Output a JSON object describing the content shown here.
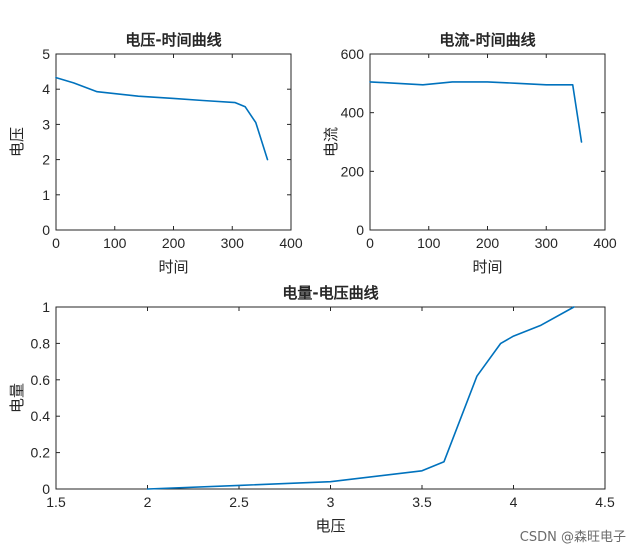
{
  "series_color": "#0072bd",
  "watermark": "CSDN @森旺电子",
  "chart_data": [
    {
      "type": "line",
      "title": "电压-时间曲线",
      "xlabel": "时间",
      "ylabel": "电压",
      "xlim": [
        0,
        400
      ],
      "ylim": [
        0,
        5
      ],
      "xticks": [
        0,
        100,
        200,
        300,
        400
      ],
      "yticks": [
        0,
        1,
        2,
        3,
        4,
        5
      ],
      "x": [
        0,
        30,
        70,
        140,
        200,
        250,
        305,
        322,
        340,
        360
      ],
      "y": [
        4.33,
        4.18,
        3.93,
        3.8,
        3.74,
        3.68,
        3.62,
        3.5,
        3.05,
        2.0
      ],
      "grid": false
    },
    {
      "type": "line",
      "title": "电流-时间曲线",
      "xlabel": "时间",
      "ylabel": "电流",
      "xlim": [
        0,
        400
      ],
      "ylim": [
        0,
        600
      ],
      "xticks": [
        0,
        100,
        200,
        300,
        400
      ],
      "yticks": [
        0,
        200,
        400,
        600
      ],
      "x": [
        0,
        45,
        90,
        140,
        200,
        250,
        300,
        345,
        360
      ],
      "y": [
        505,
        500,
        495,
        505,
        505,
        500,
        495,
        495,
        300
      ],
      "grid": false
    },
    {
      "type": "line",
      "title": "电量-电压曲线",
      "xlabel": "电压",
      "ylabel": "电量",
      "xlim": [
        1.5,
        4.5
      ],
      "ylim": [
        0,
        1
      ],
      "xticks": [
        1.5,
        2,
        2.5,
        3,
        3.5,
        4,
        4.5
      ],
      "yticks": [
        0,
        0.2,
        0.4,
        0.6,
        0.8,
        1
      ],
      "x": [
        2.0,
        2.5,
        3.0,
        3.5,
        3.62,
        3.8,
        3.93,
        4.0,
        4.15,
        4.33
      ],
      "y": [
        0.0,
        0.02,
        0.04,
        0.1,
        0.15,
        0.62,
        0.8,
        0.84,
        0.9,
        1.0
      ],
      "grid": false
    }
  ]
}
